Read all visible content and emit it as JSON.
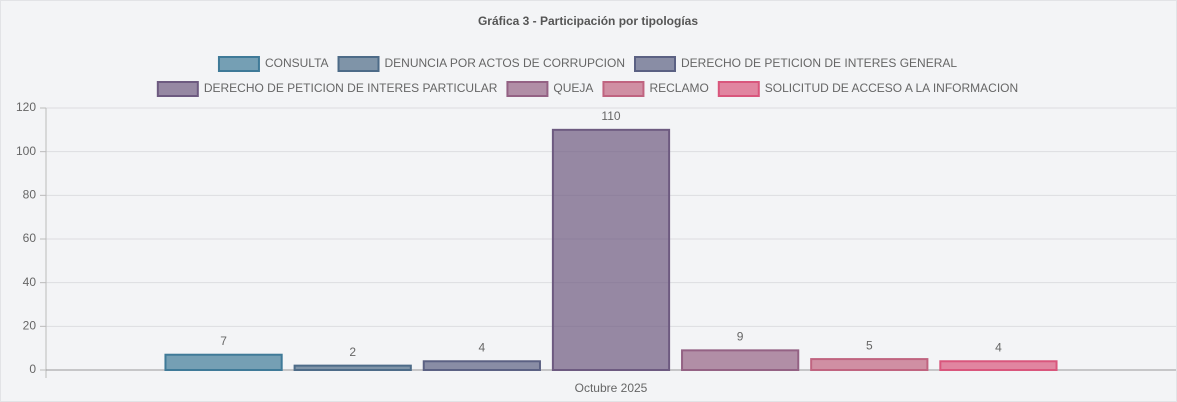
{
  "chart_data": {
    "type": "bar",
    "title": "Gráfica 3 - Participación por tipologías",
    "categories": [
      "Octubre 2025"
    ],
    "series": [
      {
        "name": "CONSULTA",
        "color": "#3f7a98",
        "values": [
          7
        ]
      },
      {
        "name": "DENUNCIA POR ACTOS DE CORRUPCION",
        "color": "#4d6b88",
        "values": [
          2
        ]
      },
      {
        "name": "DERECHO DE PETICION DE INTERES GENERAL",
        "color": "#5b6183",
        "values": [
          4
        ]
      },
      {
        "name": "DERECHO DE PETICION DE INTERES PARTICULAR",
        "color": "#6d5a80",
        "values": [
          110
        ]
      },
      {
        "name": "QUEJA",
        "color": "#946284",
        "values": [
          9
        ]
      },
      {
        "name": "RECLAMO",
        "color": "#c06480",
        "values": [
          5
        ]
      },
      {
        "name": "SOLICITUD DE ACCESO A LA INFORMACION",
        "color": "#d9567c",
        "values": [
          4
        ]
      }
    ],
    "ylim": [
      0,
      120
    ],
    "yticks": [
      0,
      20,
      40,
      60,
      80,
      100,
      120
    ],
    "grid": true,
    "legend": "top"
  }
}
